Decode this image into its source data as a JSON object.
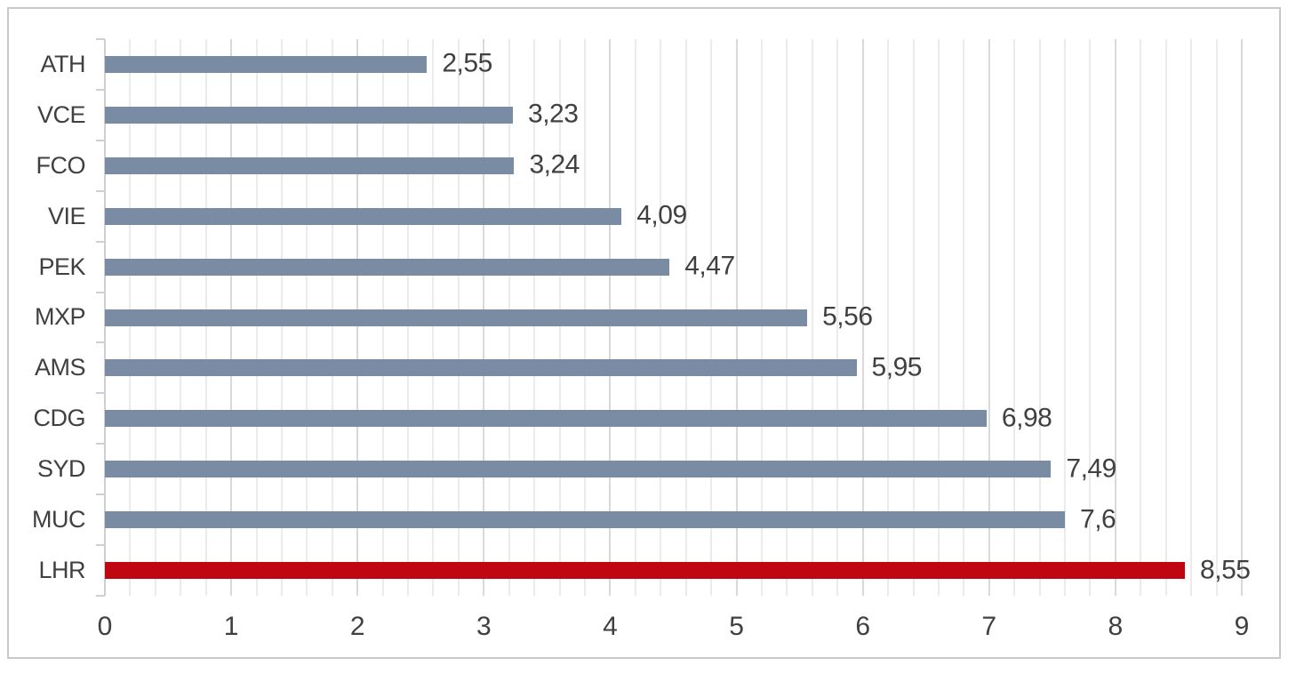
{
  "chart_style": {
    "background": "#FFFFFF",
    "border_color": "#C9C9C9",
    "text_color": "#404040",
    "bar_color": "#7A8BA4",
    "highlight_color": "#C00711",
    "gridline_major_color": "#D9D9D9",
    "gridline_minor_color": "#EBEBEB",
    "axis_color": "#CFCFCF"
  },
  "chart_data": {
    "type": "bar",
    "orientation": "horizontal",
    "title": "",
    "xlabel": "",
    "ylabel": "",
    "categories": [
      "ATH",
      "VCE",
      "FCO",
      "VIE",
      "PEK",
      "MXP",
      "AMS",
      "CDG",
      "SYD",
      "MUC",
      "LHR"
    ],
    "values": [
      2.55,
      3.23,
      3.24,
      4.09,
      4.47,
      5.56,
      5.95,
      6.98,
      7.49,
      7.6,
      8.55
    ],
    "value_labels": [
      "2,55",
      "3,23",
      "3,24",
      "4,09",
      "4,47",
      "5,56",
      "5,95",
      "6,98",
      "7,49",
      "7,6",
      "8,55"
    ],
    "highlight_index": 10,
    "highlighted_category": "LHR",
    "xlim": [
      0,
      9
    ],
    "x_ticks": [
      "0",
      "1",
      "2",
      "3",
      "4",
      "5",
      "6",
      "7",
      "8",
      "9"
    ],
    "x_major_unit": 1,
    "x_minor_unit": 0.2,
    "grid": "vertical major and minor gridlines",
    "legend": "none",
    "data_labels": "outside end, comma decimal separator"
  }
}
